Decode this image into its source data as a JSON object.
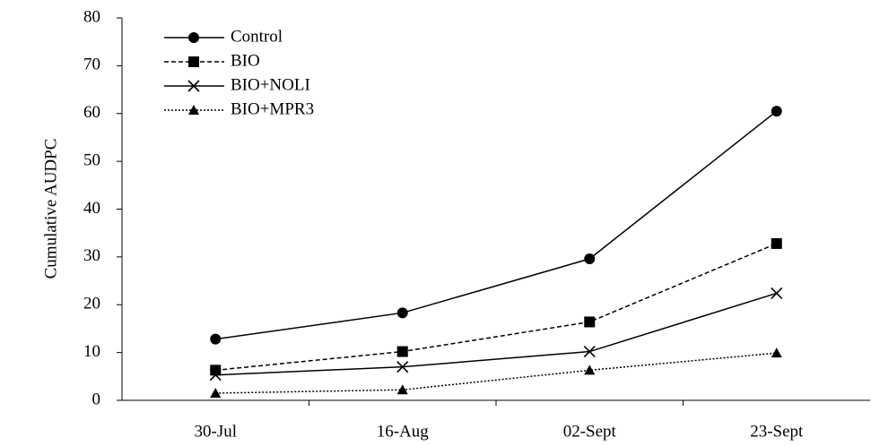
{
  "chart_data": {
    "type": "line",
    "ylabel": "Cumulative AUDPC",
    "categories": [
      "30-Jul",
      "16-Aug",
      "02-Sept",
      "23-Sept"
    ],
    "series": [
      {
        "name": "Control",
        "color": "#000000",
        "marker": "circle",
        "dash": "solid",
        "values": [
          12.8,
          18.3,
          29.6,
          60.5
        ]
      },
      {
        "name": "BIO",
        "color": "#000000",
        "marker": "square",
        "dash": "dashed",
        "values": [
          6.3,
          10.2,
          16.4,
          32.8
        ]
      },
      {
        "name": "BIO+NOLI",
        "color": "#000000",
        "marker": "x",
        "dash": "solid",
        "values": [
          5.3,
          7.0,
          10.2,
          22.4
        ]
      },
      {
        "name": "BIO+MPR3",
        "color": "#000000",
        "marker": "triangle",
        "dash": "dotted",
        "values": [
          1.5,
          2.2,
          6.3,
          9.9
        ]
      }
    ],
    "ylim": [
      0,
      80
    ],
    "yticks": [
      0,
      10,
      20,
      30,
      40,
      50,
      60,
      70,
      80
    ],
    "grid": false,
    "legend": "upper left"
  }
}
